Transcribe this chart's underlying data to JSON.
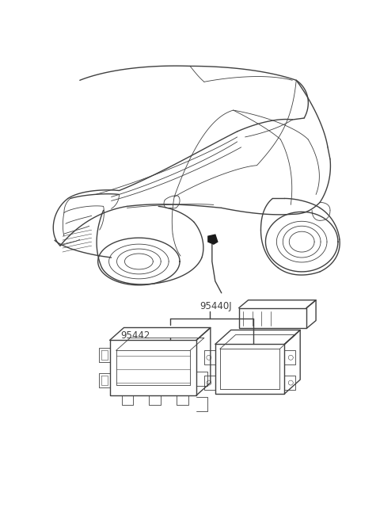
{
  "background_color": "#ffffff",
  "line_color": "#404040",
  "label_95440J": "95440J",
  "label_95442": "95442",
  "fig_width": 4.8,
  "fig_height": 6.55,
  "dpi": 100
}
